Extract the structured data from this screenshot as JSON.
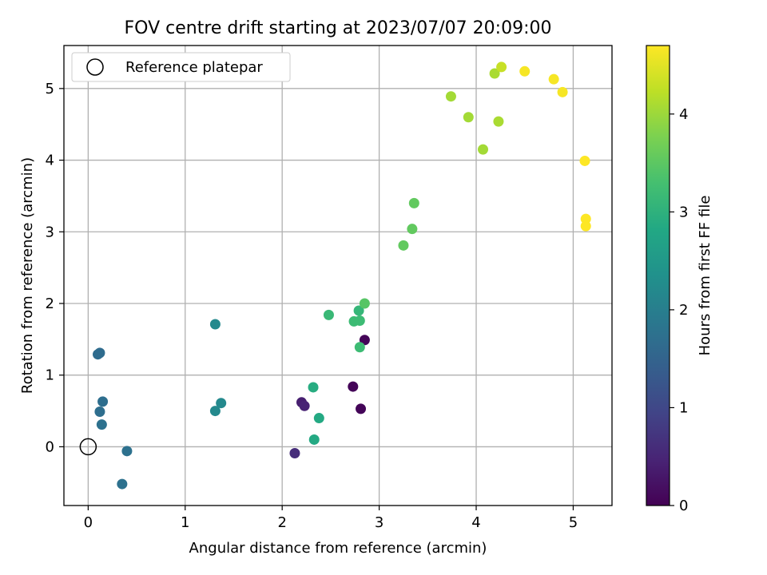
{
  "chart_data": {
    "type": "scatter",
    "title": "FOV centre drift starting at 2023/07/07 20:09:00",
    "xlabel": "Angular distance from reference (arcmin)",
    "ylabel": "Rotation from reference (arcmin)",
    "xlim": [
      -0.25,
      5.4
    ],
    "ylim": [
      -0.82,
      5.6
    ],
    "xticks": [
      0,
      1,
      2,
      3,
      4,
      5
    ],
    "yticks": [
      0,
      1,
      2,
      3,
      4,
      5
    ],
    "grid": true,
    "legend": {
      "placement": "top-left",
      "label": "Reference platepar"
    },
    "reference": {
      "x": 0,
      "y": 0
    },
    "colorbar": {
      "label": "Hours from first FF file",
      "range": [
        0,
        4.7
      ],
      "ticks": [
        0,
        1,
        2,
        3,
        4
      ],
      "colormap": "viridis"
    },
    "points": [
      {
        "x": 2.73,
        "y": 0.84,
        "t": 0.05
      },
      {
        "x": 2.81,
        "y": 0.53,
        "t": 0.05
      },
      {
        "x": 2.85,
        "y": 1.49,
        "t": 0.05
      },
      {
        "x": 2.2,
        "y": 0.62,
        "t": 0.4
      },
      {
        "x": 2.23,
        "y": 0.57,
        "t": 0.45
      },
      {
        "x": 2.13,
        "y": -0.09,
        "t": 0.6
      },
      {
        "x": 0.1,
        "y": 1.29,
        "t": 1.65
      },
      {
        "x": 0.12,
        "y": 1.31,
        "t": 1.65
      },
      {
        "x": 0.15,
        "y": 0.63,
        "t": 1.7
      },
      {
        "x": 0.12,
        "y": 0.49,
        "t": 1.7
      },
      {
        "x": 0.14,
        "y": 0.31,
        "t": 1.75
      },
      {
        "x": 0.4,
        "y": -0.06,
        "t": 1.75
      },
      {
        "x": 0.35,
        "y": -0.52,
        "t": 1.75
      },
      {
        "x": 1.31,
        "y": 1.71,
        "t": 2.2
      },
      {
        "x": 1.31,
        "y": 0.5,
        "t": 2.2
      },
      {
        "x": 1.37,
        "y": 0.61,
        "t": 2.2
      },
      {
        "x": 2.33,
        "y": 0.1,
        "t": 2.85
      },
      {
        "x": 2.38,
        "y": 0.4,
        "t": 2.85
      },
      {
        "x": 2.32,
        "y": 0.83,
        "t": 2.9
      },
      {
        "x": 2.48,
        "y": 1.84,
        "t": 3.15
      },
      {
        "x": 2.74,
        "y": 1.75,
        "t": 3.2
      },
      {
        "x": 2.8,
        "y": 1.76,
        "t": 3.2
      },
      {
        "x": 2.79,
        "y": 1.9,
        "t": 3.1
      },
      {
        "x": 2.8,
        "y": 1.39,
        "t": 3.2
      },
      {
        "x": 2.85,
        "y": 2.0,
        "t": 3.45
      },
      {
        "x": 3.25,
        "y": 2.81,
        "t": 3.55
      },
      {
        "x": 3.34,
        "y": 3.04,
        "t": 3.55
      },
      {
        "x": 3.36,
        "y": 3.4,
        "t": 3.55
      },
      {
        "x": 3.74,
        "y": 4.89,
        "t": 4.05
      },
      {
        "x": 3.92,
        "y": 4.6,
        "t": 4.05
      },
      {
        "x": 4.07,
        "y": 4.15,
        "t": 4.05
      },
      {
        "x": 4.19,
        "y": 5.21,
        "t": 4.1
      },
      {
        "x": 4.23,
        "y": 4.54,
        "t": 4.1
      },
      {
        "x": 4.26,
        "y": 5.3,
        "t": 4.3
      },
      {
        "x": 4.5,
        "y": 5.24,
        "t": 4.65
      },
      {
        "x": 4.8,
        "y": 5.13,
        "t": 4.65
      },
      {
        "x": 4.89,
        "y": 4.95,
        "t": 4.65
      },
      {
        "x": 5.12,
        "y": 3.99,
        "t": 4.7
      },
      {
        "x": 5.13,
        "y": 3.18,
        "t": 4.7
      },
      {
        "x": 5.13,
        "y": 3.08,
        "t": 4.7
      }
    ]
  }
}
